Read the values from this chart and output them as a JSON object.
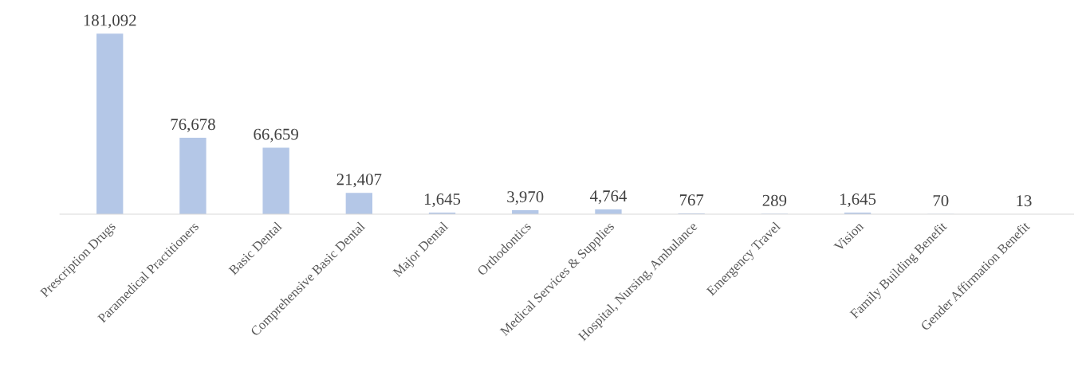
{
  "chart_data": {
    "type": "bar",
    "categories": [
      "Prescription Drugs",
      "Paramedical Practitioners",
      "Basic Dental",
      "Comprehensive Basic Dental",
      "Major Dental",
      "Orthodontics",
      "Medical Services & Supplies",
      "Hospital, Nursing, Ambulance",
      "Emergency Travel",
      "Vision",
      "Family Building Benefit",
      "Gender Affirmation Benefit"
    ],
    "values": [
      181092,
      76678,
      66659,
      21407,
      1645,
      3970,
      4764,
      767,
      289,
      1645,
      70,
      13
    ],
    "value_labels": [
      "181,092",
      "76,678",
      "66,659",
      "21,407",
      "1,645",
      "3,970",
      "4,764",
      "767",
      "289",
      "1,645",
      "70",
      "13"
    ],
    "color": "#b4c7e7",
    "grid": false,
    "legend": false,
    "tick_labels": "x"
  }
}
